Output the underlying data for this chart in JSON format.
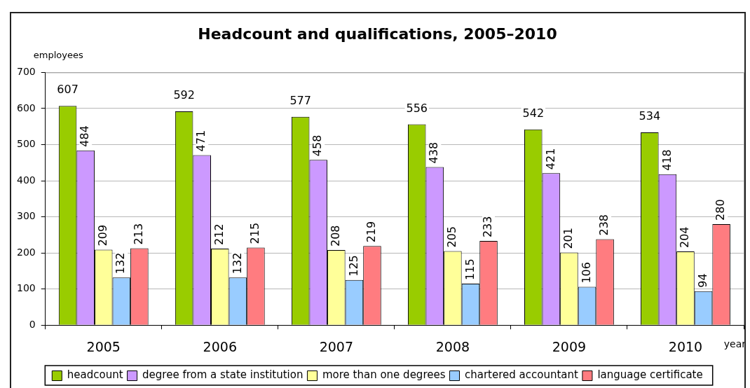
{
  "chart_data": {
    "type": "bar",
    "title": "Headcount and qualifications, 2005–2010",
    "ylabel": "employees",
    "xlabel": "year",
    "categories": [
      "2005",
      "2006",
      "2007",
      "2008",
      "2009",
      "2010"
    ],
    "series": [
      {
        "name": "headcount",
        "color": "#99cc00",
        "values": [
          607,
          592,
          577,
          556,
          542,
          534
        ]
      },
      {
        "name": "degree from a state institution",
        "color": "#cc99ff",
        "values": [
          484,
          471,
          458,
          438,
          421,
          418
        ]
      },
      {
        "name": "more than one degrees",
        "color": "#ffff99",
        "values": [
          209,
          212,
          208,
          205,
          201,
          204
        ]
      },
      {
        "name": "chartered accountant",
        "color": "#99ccff",
        "values": [
          132,
          132,
          125,
          115,
          106,
          94
        ]
      },
      {
        "name": "language certificate",
        "color": "#ff7c80",
        "values": [
          213,
          215,
          219,
          233,
          238,
          280
        ]
      }
    ],
    "ylim": [
      0,
      700
    ],
    "yticks": [
      0,
      100,
      200,
      300,
      400,
      500,
      600,
      700
    ],
    "grid": "y",
    "legend": "bottom",
    "data_labels": true
  }
}
